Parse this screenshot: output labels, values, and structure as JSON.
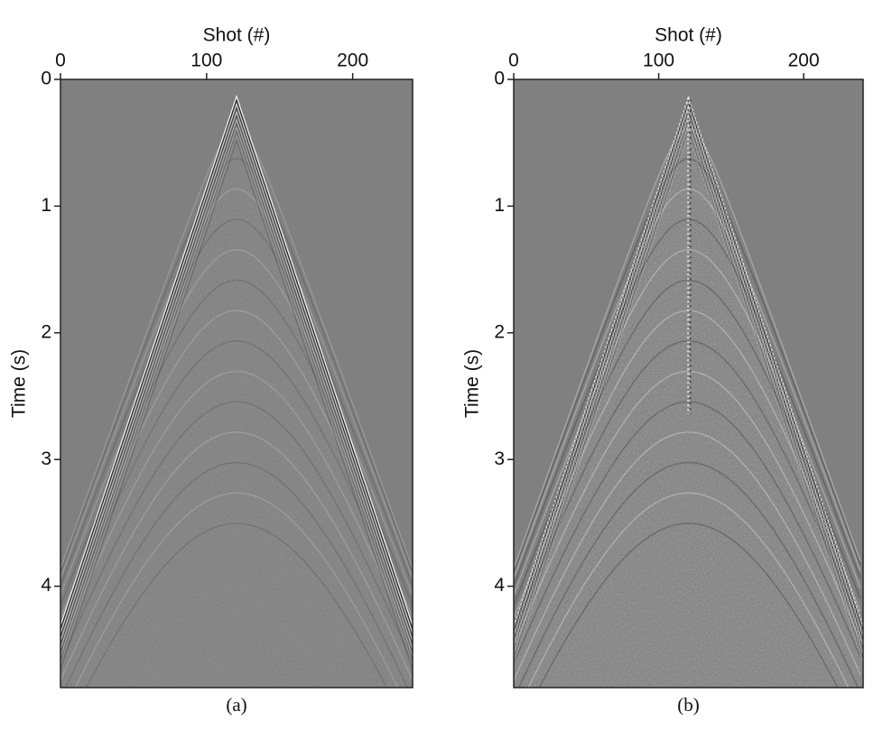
{
  "chart_data": [
    {
      "type": "seismic-image",
      "caption": "(a)",
      "xlabel": "Shot (#)",
      "ylabel": "Time (s)",
      "xlim": [
        0,
        241
      ],
      "xticks": [
        0,
        100,
        200
      ],
      "ylim": [
        0,
        4.8
      ],
      "yticks": [
        0,
        1,
        2,
        3,
        4
      ],
      "xaxis_side": "top",
      "yreverse": true,
      "background": "#808080"
    },
    {
      "type": "seismic-image",
      "caption": "(b)",
      "xlabel": "Shot (#)",
      "ylabel": "Time (s)",
      "xlim": [
        0,
        241
      ],
      "xticks": [
        0,
        100,
        200
      ],
      "ylim": [
        0,
        4.8
      ],
      "yticks": [
        0,
        1,
        2,
        3,
        4
      ],
      "xaxis_side": "top",
      "yreverse": true,
      "background": "#808080"
    }
  ]
}
